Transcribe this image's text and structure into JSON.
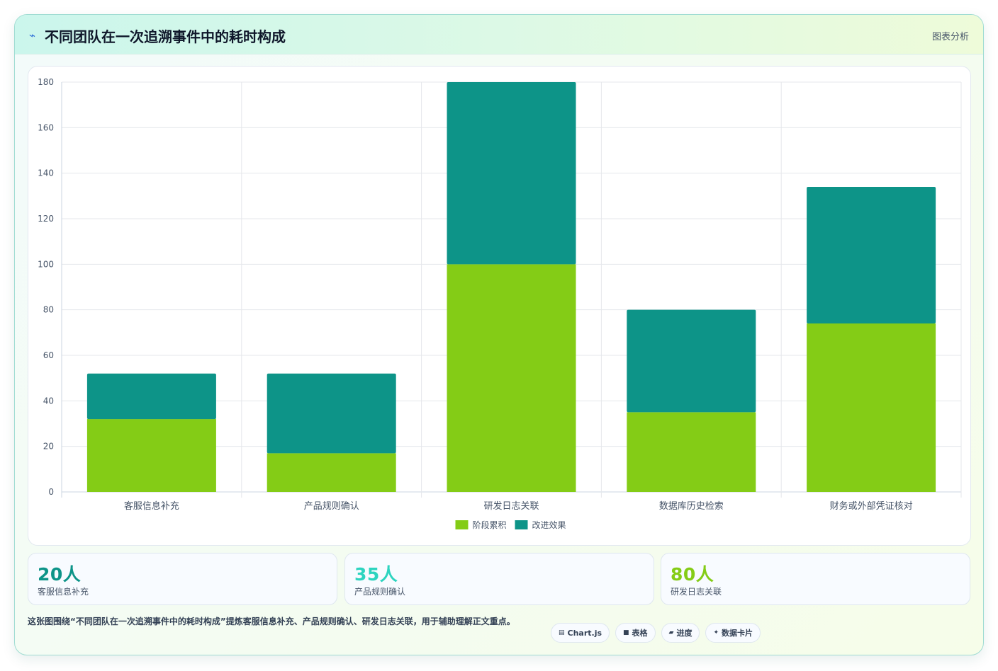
{
  "header": {
    "icon": "lightning-icon",
    "title": "不同团队在一次追溯事件中的耗时构成",
    "link": "图表分析"
  },
  "chart_data": {
    "type": "bar",
    "stacked": true,
    "categories": [
      "客服信息补充",
      "产品规则确认",
      "研发日志关联",
      "数据库历史检索",
      "财务或外部凭证核对"
    ],
    "series": [
      {
        "name": "阶段累积",
        "color": "#84cc16",
        "values": [
          32,
          17,
          100,
          35,
          74
        ]
      },
      {
        "name": "改进效果",
        "color": "#0d9488",
        "values": [
          20,
          35,
          80,
          45,
          60
        ]
      }
    ],
    "ylim": [
      0,
      180
    ],
    "yticks": [
      0,
      20,
      40,
      60,
      80,
      100,
      120,
      140,
      160,
      180
    ],
    "grid": true,
    "legend_position": "bottom"
  },
  "stats": [
    {
      "value": "20人",
      "label": "客服信息补充",
      "color": "#0d9488"
    },
    {
      "value": "35人",
      "label": "产品规则确认",
      "color": "#2dd4bf"
    },
    {
      "value": "80人",
      "label": "研发日志关联",
      "color": "#84cc16"
    }
  ],
  "footer": {
    "note": "这张图围绕“不同团队在一次追溯事件中的耗时构成”提炼客服信息补充、产品规则确认、研发日志关联，用于辅助理解正文重点。",
    "tags": [
      {
        "icon": "chart-icon",
        "glyph": "▤",
        "label": "Chart.js"
      },
      {
        "icon": "table-icon",
        "glyph": "■",
        "label": "表格"
      },
      {
        "icon": "progress-icon",
        "glyph": "▰",
        "label": "进度"
      },
      {
        "icon": "sparkle-icon",
        "glyph": "✦",
        "label": "数据卡片"
      }
    ]
  }
}
